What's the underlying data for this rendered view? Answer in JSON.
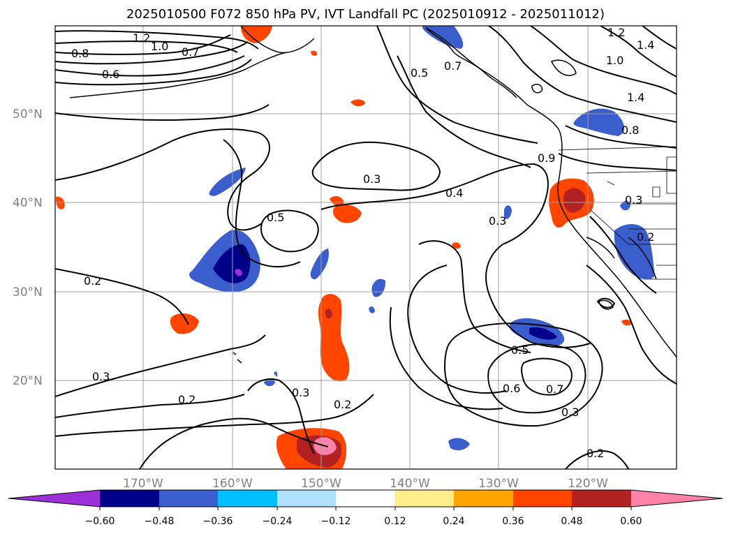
{
  "title": "2025010500 F072 850 hPa PV, IVT Landfall PC (2025010912 - 2025011012)",
  "lat_labels": [
    "50°N",
    "40°N",
    "30°N",
    "20°N"
  ],
  "lon_labels": [
    "170°W",
    "160°W",
    "150°W",
    "140°W",
    "130°W",
    "120°W"
  ],
  "contour_labels": [
    "1.2",
    "1.0",
    "0.8",
    "0.7",
    "0.6",
    "0.5",
    "0.7",
    "1.2",
    "1.4",
    "1.0",
    "1.4",
    "0.8",
    "0.9",
    "0.3",
    "0.4",
    "0.5",
    "0.3",
    "0.3",
    "0.2",
    "0.2",
    "0.3",
    "0.2",
    "0.3",
    "0.2",
    "0.5",
    "0.6",
    "0.7",
    "0.3",
    "0.2"
  ],
  "colorbar": {
    "colors": [
      "#9b30d9",
      "#00008b",
      "#3a5fcd",
      "#00bfff",
      "#b0e2ff",
      "#ffffff",
      "#ffec8b",
      "#ffa500",
      "#ff4500",
      "#b22222",
      "#ff82ab"
    ],
    "ticks": [
      "−0.60",
      "−0.48",
      "−0.36",
      "−0.24",
      "−0.12",
      "0.12",
      "0.24",
      "0.36",
      "0.48",
      "0.60"
    ]
  }
}
